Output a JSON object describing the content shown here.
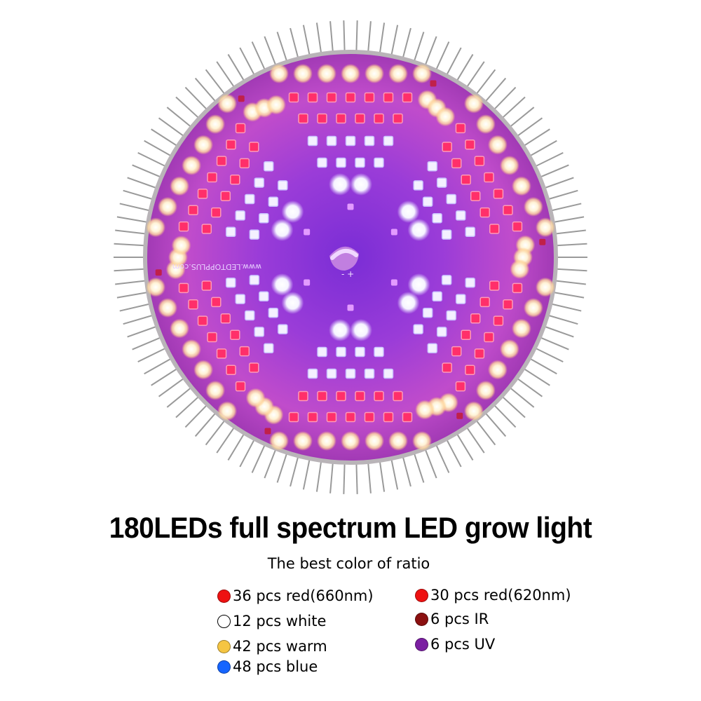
{
  "headline": "180LEDs full spectrum LED grow light",
  "subtitle": "The best color of ratio",
  "pcb_marking": "www.LEDTOPPLUS.com",
  "legend": [
    {
      "text": "36 pcs red(660nm)",
      "color": "#ee1111"
    },
    {
      "text": "30 pcs red(620nm)",
      "color": "#ee1111"
    },
    {
      "text": "12 pcs white",
      "color": "#ffffff"
    },
    {
      "text": "6 pcs IR",
      "color": "#8b1010"
    },
    {
      "text": "42 pcs warm",
      "color": "#f5c542"
    },
    {
      "text": "6 pcs UV",
      "color": "#7b1fa2"
    },
    {
      "text": "48 pcs blue",
      "color": "#1565ff"
    }
  ]
}
